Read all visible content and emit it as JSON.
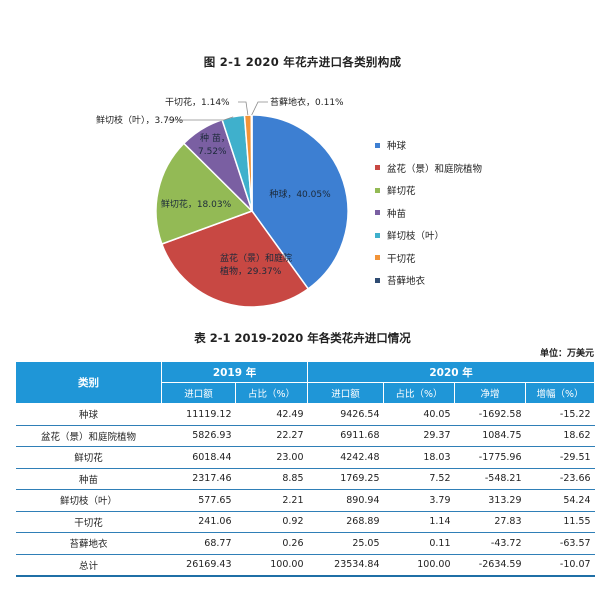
{
  "figure": {
    "title": "图 2-1  2020 年花卉进口各类别构成"
  },
  "chart_data": {
    "type": "pie",
    "title": "图 2-1  2020 年花卉进口各类别构成",
    "slices": [
      {
        "name": "种球",
        "value": 40.05,
        "color": "#3d7fd2",
        "label": "种球，40.05%"
      },
      {
        "name": "盆花（景）和庭院植物",
        "value": 29.37,
        "color": "#c84843",
        "label": "盆花（景）和庭院植物，29.37%"
      },
      {
        "name": "鲜切花",
        "value": 18.03,
        "color": "#93ba55",
        "label": "鲜切花，18.03%"
      },
      {
        "name": "种苗",
        "value": 7.52,
        "color": "#7a5fa2",
        "label": "种 苗，7.52%"
      },
      {
        "name": "鲜切枝（叶）",
        "value": 3.79,
        "color": "#3fb0cc",
        "label": "鲜切枝（叶），3.79%"
      },
      {
        "name": "干切花",
        "value": 1.14,
        "color": "#f29438",
        "label": "干切花，1.14%"
      },
      {
        "name": "苔藓地衣",
        "value": 0.11,
        "color": "#2f4c72",
        "label": "苔藓地衣，0.11%"
      }
    ],
    "legend_position": "right"
  },
  "table": {
    "title": "表 2-1  2019-2020 年各类花卉进口情况",
    "unit": "单位：万美元",
    "header": {
      "category": "类别",
      "year2019": "2019 年",
      "year2020": "2020 年",
      "import_amount": "进口额",
      "share": "占比（%）",
      "net_increase": "净增",
      "growth": "增幅（%）"
    },
    "rows": [
      {
        "name": "种球",
        "v2019": "11119.12",
        "s2019": "42.49",
        "v2020": "9426.54",
        "s2020": "40.05",
        "net": "-1692.58",
        "growth": "-15.22"
      },
      {
        "name": "盆花（景）和庭院植物",
        "v2019": "5826.93",
        "s2019": "22.27",
        "v2020": "6911.68",
        "s2020": "29.37",
        "net": "1084.75",
        "growth": "18.62"
      },
      {
        "name": "鲜切花",
        "v2019": "6018.44",
        "s2019": "23.00",
        "v2020": "4242.48",
        "s2020": "18.03",
        "net": "-1775.96",
        "growth": "-29.51"
      },
      {
        "name": "种苗",
        "v2019": "2317.46",
        "s2019": "8.85",
        "v2020": "1769.25",
        "s2020": "7.52",
        "net": "-548.21",
        "growth": "-23.66"
      },
      {
        "name": "鲜切枝（叶）",
        "v2019": "577.65",
        "s2019": "2.21",
        "v2020": "890.94",
        "s2020": "3.79",
        "net": "313.29",
        "growth": "54.24"
      },
      {
        "name": "干切花",
        "v2019": "241.06",
        "s2019": "0.92",
        "v2020": "268.89",
        "s2020": "1.14",
        "net": "27.83",
        "growth": "11.55"
      },
      {
        "name": "苔藓地衣",
        "v2019": "68.77",
        "s2019": "0.26",
        "v2020": "25.05",
        "s2020": "0.11",
        "net": "-43.72",
        "growth": "-63.57"
      },
      {
        "name": "总计",
        "v2019": "26169.43",
        "s2019": "100.00",
        "v2020": "23534.84",
        "s2020": "100.00",
        "net": "-2634.59",
        "growth": "-10.07"
      }
    ]
  }
}
